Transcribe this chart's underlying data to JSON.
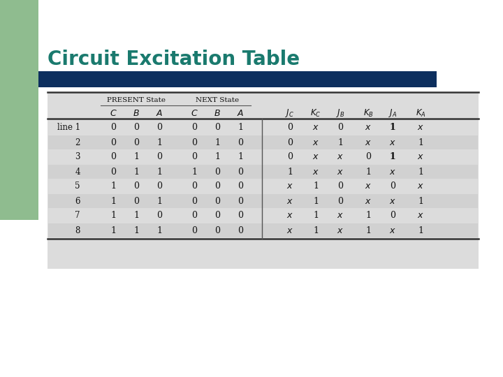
{
  "title": "Circuit Excitation Table",
  "title_color": "#1a7a6e",
  "title_fontsize": 20,
  "bar_color": "#0d2f5e",
  "green_color": "#8fbc8f",
  "background_color": "#ffffff",
  "table_bg": "#dcdcdc",
  "rows": [
    [
      "line 1",
      "0",
      "0",
      "0",
      "0",
      "0",
      "1",
      "0",
      "x",
      "0",
      "x",
      "1",
      "x"
    ],
    [
      "2",
      "0",
      "0",
      "1",
      "0",
      "1",
      "0",
      "0",
      "x",
      "1",
      "x",
      "x",
      "1"
    ],
    [
      "3",
      "0",
      "1",
      "0",
      "0",
      "1",
      "1",
      "0",
      "x",
      "x",
      "0",
      "1",
      "x"
    ],
    [
      "4",
      "0",
      "1",
      "1",
      "1",
      "0",
      "0",
      "1",
      "x",
      "x",
      "1",
      "x",
      "1"
    ],
    [
      "5",
      "1",
      "0",
      "0",
      "0",
      "0",
      "0",
      "x",
      "1",
      "0",
      "x",
      "0",
      "x"
    ],
    [
      "6",
      "1",
      "0",
      "1",
      "0",
      "0",
      "0",
      "x",
      "1",
      "0",
      "x",
      "x",
      "1"
    ],
    [
      "7",
      "1",
      "1",
      "0",
      "0",
      "0",
      "0",
      "x",
      "1",
      "x",
      "1",
      "0",
      "x"
    ],
    [
      "8",
      "1",
      "1",
      "1",
      "0",
      "0",
      "0",
      "x",
      "1",
      "x",
      "1",
      "x",
      "1"
    ]
  ],
  "italic_rows": [
    [
      false,
      false,
      false,
      false,
      false,
      false,
      false,
      false,
      true,
      false,
      true,
      false,
      true
    ],
    [
      false,
      false,
      false,
      false,
      false,
      false,
      false,
      false,
      true,
      false,
      true,
      true,
      false
    ],
    [
      false,
      false,
      false,
      false,
      false,
      false,
      false,
      false,
      true,
      true,
      false,
      false,
      true
    ],
    [
      false,
      false,
      false,
      false,
      false,
      false,
      false,
      false,
      true,
      true,
      false,
      true,
      false
    ],
    [
      false,
      false,
      false,
      false,
      false,
      false,
      false,
      true,
      false,
      false,
      true,
      false,
      true
    ],
    [
      false,
      false,
      false,
      false,
      false,
      false,
      false,
      true,
      false,
      false,
      true,
      true,
      false
    ],
    [
      false,
      false,
      false,
      false,
      false,
      false,
      false,
      true,
      false,
      true,
      false,
      false,
      true
    ],
    [
      false,
      false,
      false,
      false,
      false,
      false,
      false,
      true,
      false,
      true,
      false,
      true,
      false
    ]
  ],
  "bold_rows": [
    [
      false,
      false,
      false,
      false,
      false,
      false,
      false,
      false,
      false,
      false,
      false,
      true,
      false
    ],
    [
      false,
      false,
      false,
      false,
      false,
      false,
      false,
      false,
      false,
      false,
      false,
      false,
      false
    ],
    [
      false,
      false,
      false,
      false,
      false,
      false,
      false,
      false,
      false,
      false,
      false,
      true,
      false
    ],
    [
      false,
      false,
      false,
      false,
      false,
      false,
      false,
      false,
      false,
      false,
      false,
      false,
      false
    ],
    [
      false,
      false,
      false,
      false,
      false,
      false,
      false,
      false,
      false,
      false,
      false,
      false,
      false
    ],
    [
      false,
      false,
      false,
      false,
      false,
      false,
      false,
      false,
      false,
      false,
      false,
      false,
      false
    ],
    [
      false,
      false,
      false,
      false,
      false,
      false,
      false,
      false,
      false,
      true,
      false,
      false,
      false
    ],
    [
      false,
      false,
      false,
      false,
      false,
      false,
      false,
      false,
      false,
      true,
      false,
      true,
      false
    ]
  ]
}
